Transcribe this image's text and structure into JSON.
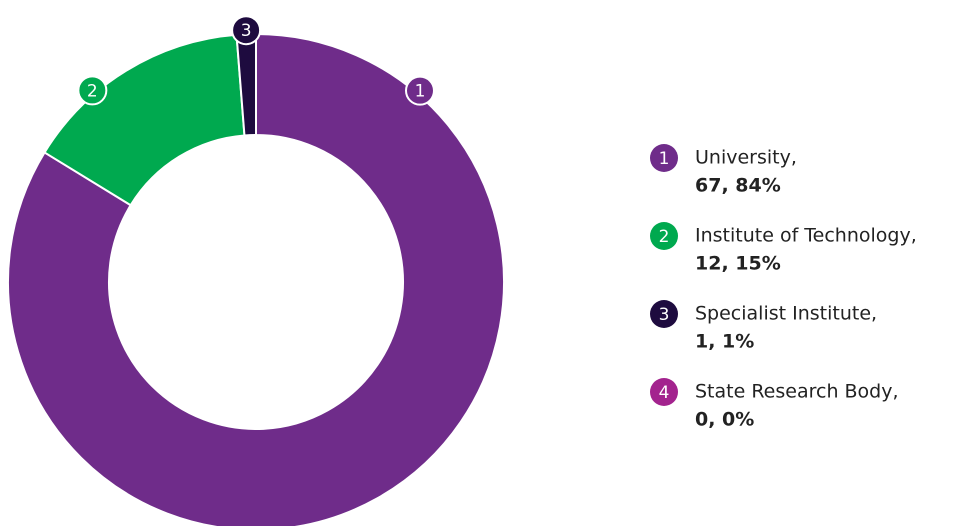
{
  "chart_data": {
    "type": "donut",
    "badges": [
      "1",
      "2",
      "3",
      "4"
    ],
    "categories": [
      "University,",
      "Institute of Technology,",
      "Specialist Institute,",
      "State Research Body,"
    ],
    "values": [
      67,
      12,
      1,
      0
    ],
    "value_labels": [
      "67, 84%",
      "12, 15%",
      "1, 1%",
      "0, 0%"
    ],
    "colors": [
      "#6f2c8a",
      "#00a94f",
      "#1e0b3f",
      "#a3238e"
    ],
    "legend": "right"
  }
}
